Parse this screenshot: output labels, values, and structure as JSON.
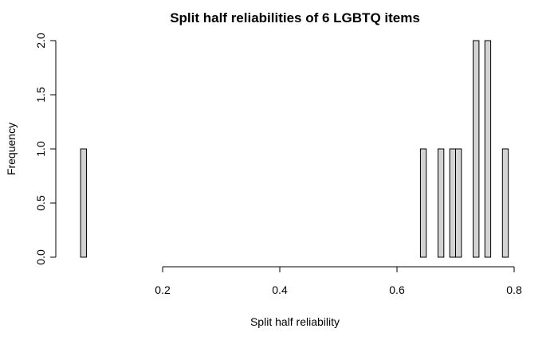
{
  "chart_data": {
    "type": "bar",
    "title": "Split half reliabilities of 6 LGBTQ items",
    "xlabel": "Split half reliability",
    "ylabel": "Frequency",
    "bin_width": 0.01,
    "bins": [
      {
        "x0": 0.06,
        "x1": 0.07,
        "count": 1
      },
      {
        "x0": 0.64,
        "x1": 0.65,
        "count": 1
      },
      {
        "x0": 0.67,
        "x1": 0.68,
        "count": 1
      },
      {
        "x0": 0.69,
        "x1": 0.7,
        "count": 1
      },
      {
        "x0": 0.7,
        "x1": 0.71,
        "count": 1
      },
      {
        "x0": 0.73,
        "x1": 0.74,
        "count": 2
      },
      {
        "x0": 0.75,
        "x1": 0.76,
        "count": 2
      },
      {
        "x0": 0.78,
        "x1": 0.79,
        "count": 1
      }
    ],
    "xlim": [
      0.06,
      0.79
    ],
    "ylim": [
      0,
      2
    ],
    "x_ticks": [
      0.2,
      0.4,
      0.6,
      0.8
    ],
    "x_tick_labels": [
      "0.2",
      "0.4",
      "0.6",
      "0.8"
    ],
    "y_ticks": [
      0,
      0.5,
      1,
      1.5,
      2
    ],
    "y_tick_labels": [
      "0.0",
      "0.5",
      "1.0",
      "1.5",
      "2.0"
    ],
    "colors": {
      "bar_fill": "#d3d3d3",
      "bar_stroke": "#000000"
    },
    "grid": false,
    "legend": "none"
  }
}
